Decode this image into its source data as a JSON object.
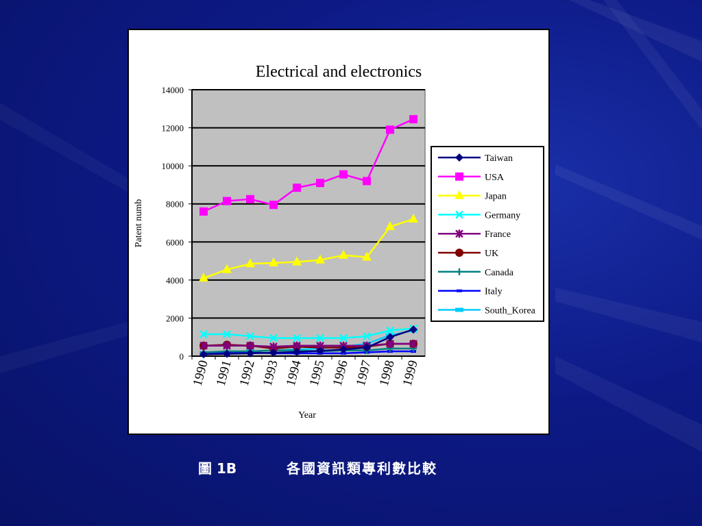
{
  "slide": {
    "caption_figure": "圖 1B",
    "caption_text": "各國資訊類專利數比較",
    "background_color": "#0d1a86"
  },
  "chart_data": {
    "type": "line",
    "title": "Electrical and electronics",
    "xlabel": "Year",
    "ylabel": "Patent numb",
    "categories": [
      "1990",
      "1991",
      "1992",
      "1993",
      "1994",
      "1995",
      "1996",
      "1997",
      "1998",
      "1999"
    ],
    "ylim": [
      0,
      14000
    ],
    "yticks": [
      0,
      2000,
      4000,
      6000,
      8000,
      10000,
      12000,
      14000
    ],
    "grid": true,
    "plot_background": "#c0c0c0",
    "legend_position": "right",
    "series": [
      {
        "name": "Taiwan",
        "color": "#000080",
        "marker": "diamond",
        "values": [
          100,
          120,
          150,
          180,
          220,
          280,
          350,
          450,
          1000,
          1400
        ]
      },
      {
        "name": "USA",
        "color": "#ff00ff",
        "marker": "square",
        "values": [
          7600,
          8150,
          8250,
          7950,
          8850,
          9100,
          9550,
          9200,
          11900,
          12450
        ]
      },
      {
        "name": "Japan",
        "color": "#ffff00",
        "marker": "triangle",
        "values": [
          4100,
          4550,
          4850,
          4900,
          4950,
          5050,
          5300,
          5200,
          6800,
          7200
        ]
      },
      {
        "name": "Germany",
        "color": "#00ffff",
        "marker": "x",
        "values": [
          1150,
          1150,
          1050,
          950,
          950,
          950,
          950,
          1050,
          1350,
          1450
        ]
      },
      {
        "name": "France",
        "color": "#800080",
        "marker": "star",
        "values": [
          550,
          550,
          550,
          500,
          550,
          550,
          550,
          550,
          650,
          650
        ]
      },
      {
        "name": "UK",
        "color": "#800000",
        "marker": "circle",
        "values": [
          550,
          600,
          550,
          400,
          500,
          450,
          450,
          500,
          650,
          650
        ]
      },
      {
        "name": "Canada",
        "color": "#008080",
        "marker": "plus",
        "values": [
          200,
          250,
          250,
          300,
          300,
          250,
          300,
          300,
          400,
          400
        ]
      },
      {
        "name": "Italy",
        "color": "#0000ff",
        "marker": "dash",
        "values": [
          150,
          200,
          200,
          150,
          150,
          150,
          150,
          200,
          250,
          250
        ]
      },
      {
        "name": "South_Korea",
        "color": "#00ccff",
        "marker": "bar",
        "values": [
          150,
          200,
          250,
          300,
          350,
          400,
          500,
          650,
          1100,
          1350
        ]
      }
    ]
  }
}
